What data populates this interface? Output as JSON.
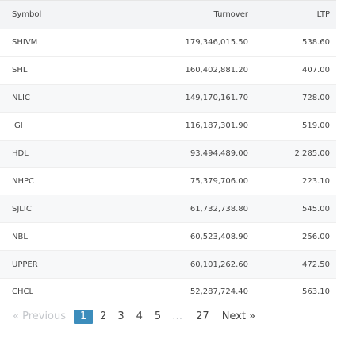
{
  "table": {
    "headers": {
      "symbol": "Symbol",
      "turnover": "Turnover",
      "ltp": "LTP"
    },
    "rows": [
      {
        "symbol": "SHIVM",
        "turnover": "179,346,015.50",
        "ltp": "538.60"
      },
      {
        "symbol": "SHL",
        "turnover": "160,402,881.20",
        "ltp": "407.00"
      },
      {
        "symbol": "NLIC",
        "turnover": "149,170,161.70",
        "ltp": "728.00"
      },
      {
        "symbol": "IGI",
        "turnover": "116,187,301.90",
        "ltp": "519.00"
      },
      {
        "symbol": "HDL",
        "turnover": "93,494,489.00",
        "ltp": "2,285.00"
      },
      {
        "symbol": "NHPC",
        "turnover": "75,379,706.00",
        "ltp": "223.10"
      },
      {
        "symbol": "SJLIC",
        "turnover": "61,732,738.80",
        "ltp": "545.00"
      },
      {
        "symbol": "NBL",
        "turnover": "60,523,408.90",
        "ltp": "256.00"
      },
      {
        "symbol": "UPPER",
        "turnover": "60,101,262.60",
        "ltp": "472.50"
      },
      {
        "symbol": "CHCL",
        "turnover": "52,287,724.40",
        "ltp": "563.10"
      }
    ]
  },
  "pagination": {
    "previous": "« Previous",
    "pages": [
      "1",
      "2",
      "3",
      "4",
      "5"
    ],
    "ellipsis": "…",
    "last": "27",
    "next": "Next »",
    "current": "1"
  },
  "colors": {
    "header_bg": "#f3f4f6",
    "stripe_bg": "#f7f8f9",
    "active_page": "#3c8dbc",
    "disabled_text": "#c4c7cb"
  }
}
